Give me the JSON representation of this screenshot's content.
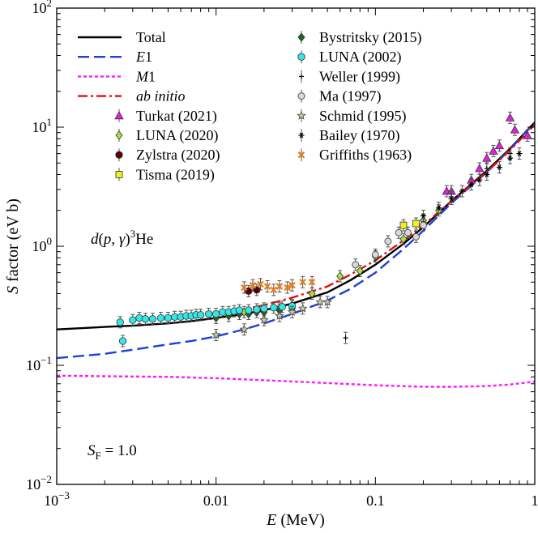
{
  "chart_data": {
    "type": "scatter",
    "xscale": "log",
    "yscale": "log",
    "xlim": [
      0.001,
      1
    ],
    "ylim": [
      0.01,
      100
    ],
    "grid": false,
    "legend_placement": "top-left",
    "xlabel": "E (MeV)",
    "ylabel": "S factor (eV b)",
    "x_tick_labels": [
      "10−3",
      "0.01",
      "0.1",
      "1"
    ],
    "y_tick_labels": [
      "10−2",
      "10−1",
      "100",
      "101",
      "102"
    ],
    "annotations": {
      "reaction": "d(p, γ)3He",
      "scaling": "SF = 1.0"
    },
    "lines": [
      {
        "name": "Total",
        "color": "#000000",
        "dash": "solid",
        "x": [
          0.001,
          0.002,
          0.003,
          0.005,
          0.007,
          0.01,
          0.015,
          0.02,
          0.03,
          0.05,
          0.07,
          0.1,
          0.15,
          0.2,
          0.3,
          0.5,
          0.7,
          1.0
        ],
        "y": [
          0.2,
          0.21,
          0.215,
          0.225,
          0.235,
          0.25,
          0.27,
          0.29,
          0.33,
          0.41,
          0.52,
          0.7,
          1.05,
          1.45,
          2.4,
          4.3,
          6.6,
          11
        ]
      },
      {
        "name": "E1",
        "color": "#1f3fd6",
        "dash": "dashed",
        "x": [
          0.001,
          0.002,
          0.003,
          0.005,
          0.007,
          0.01,
          0.015,
          0.02,
          0.03,
          0.05,
          0.07,
          0.1,
          0.15,
          0.2,
          0.3,
          0.5,
          0.7,
          1.0
        ],
        "y": [
          0.115,
          0.125,
          0.135,
          0.15,
          0.16,
          0.175,
          0.2,
          0.225,
          0.27,
          0.35,
          0.44,
          0.6,
          0.95,
          1.35,
          2.3,
          4.2,
          6.5,
          11
        ]
      },
      {
        "name": "M1",
        "color": "#ff1aff",
        "dash": "dotted",
        "x": [
          0.001,
          0.002,
          0.005,
          0.01,
          0.02,
          0.05,
          0.1,
          0.2,
          0.3,
          0.5,
          0.7,
          1.0
        ],
        "y": [
          0.082,
          0.081,
          0.08,
          0.078,
          0.075,
          0.071,
          0.068,
          0.066,
          0.066,
          0.067,
          0.069,
          0.073
        ]
      },
      {
        "name": "ab initio",
        "color": "#e01010",
        "dash": "dashdot",
        "x": [
          0.01,
          0.015,
          0.02,
          0.03,
          0.05,
          0.07,
          0.1,
          0.15,
          0.2,
          0.3,
          0.5,
          0.7,
          1.0
        ],
        "y": [
          0.27,
          0.295,
          0.32,
          0.37,
          0.46,
          0.58,
          0.76,
          1.12,
          1.5,
          2.4,
          4.2,
          6.4,
          10.5
        ]
      }
    ],
    "datasets": [
      {
        "name": "Turkat (2021)",
        "marker": "triangle",
        "color": "#e020e0",
        "points": [
          [
            0.28,
            2.9
          ],
          [
            0.3,
            2.9
          ],
          [
            0.4,
            3.6
          ],
          [
            0.45,
            4.5
          ],
          [
            0.5,
            5.5
          ],
          [
            0.55,
            6.3
          ],
          [
            0.6,
            7.0
          ],
          [
            0.7,
            12
          ],
          [
            0.75,
            9.5
          ],
          [
            0.9,
            8.5
          ]
        ]
      },
      {
        "name": "LUNA (2020)",
        "marker": "diamond",
        "color": "#a8e040",
        "points": [
          [
            0.015,
            0.28
          ],
          [
            0.02,
            0.29
          ],
          [
            0.025,
            0.3
          ],
          [
            0.03,
            0.32
          ],
          [
            0.04,
            0.4
          ],
          [
            0.06,
            0.56
          ],
          [
            0.08,
            0.62
          ],
          [
            0.1,
            0.82
          ],
          [
            0.15,
            1.15
          ],
          [
            0.2,
            1.65
          ],
          [
            0.25,
            2.0
          ]
        ]
      },
      {
        "name": "Zylstra (2020)",
        "marker": "circle",
        "color": "#5a0000",
        "points": [
          [
            0.016,
            0.42
          ],
          [
            0.018,
            0.43
          ]
        ]
      },
      {
        "name": "Tisma (2019)",
        "marker": "square",
        "color": "#f0f020",
        "points": [
          [
            0.15,
            1.5
          ],
          [
            0.18,
            1.55
          ]
        ]
      },
      {
        "name": "Bystritsky (2015)",
        "marker": "diamond",
        "color": "#1e6a1e",
        "points": [
          [
            0.01,
            0.25
          ],
          [
            0.012,
            0.26
          ],
          [
            0.014,
            0.27
          ],
          [
            0.016,
            0.27
          ],
          [
            0.018,
            0.28
          ],
          [
            0.02,
            0.28
          ],
          [
            0.025,
            0.29
          ],
          [
            0.03,
            0.3
          ]
        ]
      },
      {
        "name": "LUNA (2002)",
        "marker": "circle",
        "color": "#30e8e8",
        "points": [
          [
            0.0025,
            0.23
          ],
          [
            0.0026,
            0.16
          ],
          [
            0.003,
            0.24
          ],
          [
            0.0033,
            0.25
          ],
          [
            0.0036,
            0.245
          ],
          [
            0.004,
            0.245
          ],
          [
            0.0045,
            0.25
          ],
          [
            0.005,
            0.25
          ],
          [
            0.0055,
            0.255
          ],
          [
            0.006,
            0.255
          ],
          [
            0.0065,
            0.26
          ],
          [
            0.007,
            0.26
          ],
          [
            0.0075,
            0.265
          ],
          [
            0.008,
            0.265
          ],
          [
            0.009,
            0.27
          ],
          [
            0.01,
            0.27
          ],
          [
            0.011,
            0.28
          ],
          [
            0.012,
            0.28
          ],
          [
            0.013,
            0.285
          ],
          [
            0.014,
            0.29
          ],
          [
            0.016,
            0.29
          ],
          [
            0.018,
            0.295
          ],
          [
            0.02,
            0.3
          ],
          [
            0.023,
            0.305
          ],
          [
            0.026,
            0.31
          ],
          [
            0.03,
            0.315
          ]
        ]
      },
      {
        "name": "Weller (1999)",
        "marker": "plus",
        "color": "#000000",
        "points": [
          [
            0.065,
            0.17
          ],
          [
            0.3,
            2.6
          ],
          [
            0.5,
            4.5
          ],
          [
            0.7,
            6.0
          ]
        ]
      },
      {
        "name": "Ma (1997)",
        "marker": "circle-open",
        "color": "#808080",
        "points": [
          [
            0.075,
            0.7
          ],
          [
            0.1,
            0.85
          ],
          [
            0.12,
            1.1
          ],
          [
            0.14,
            1.3
          ],
          [
            0.16,
            1.3
          ],
          [
            0.18,
            1.2
          ],
          [
            0.2,
            1.5
          ]
        ]
      },
      {
        "name": "Schmid (1995)",
        "marker": "star",
        "color": "#c8c8a0",
        "points": [
          [
            0.01,
            0.18
          ],
          [
            0.015,
            0.2
          ],
          [
            0.02,
            0.24
          ],
          [
            0.025,
            0.26
          ],
          [
            0.03,
            0.28
          ],
          [
            0.035,
            0.3
          ],
          [
            0.045,
            0.34
          ],
          [
            0.05,
            0.34
          ]
        ]
      },
      {
        "name": "Bailey (1970)",
        "marker": "asterisk",
        "color": "#000000",
        "points": [
          [
            0.2,
            1.8
          ],
          [
            0.25,
            2.1
          ],
          [
            0.3,
            2.5
          ],
          [
            0.35,
            2.9
          ],
          [
            0.4,
            3.3
          ],
          [
            0.45,
            3.6
          ],
          [
            0.5,
            4.0
          ],
          [
            0.6,
            4.6
          ],
          [
            0.7,
            5.5
          ],
          [
            0.8,
            6.0
          ]
        ]
      },
      {
        "name": "Griffiths (1963)",
        "marker": "cross",
        "color": "#e08020",
        "points": [
          [
            0.015,
            0.45
          ],
          [
            0.017,
            0.47
          ],
          [
            0.019,
            0.48
          ],
          [
            0.021,
            0.46
          ],
          [
            0.023,
            0.43
          ],
          [
            0.025,
            0.46
          ],
          [
            0.028,
            0.45
          ],
          [
            0.03,
            0.47
          ],
          [
            0.035,
            0.5
          ],
          [
            0.04,
            0.5
          ]
        ]
      }
    ]
  }
}
